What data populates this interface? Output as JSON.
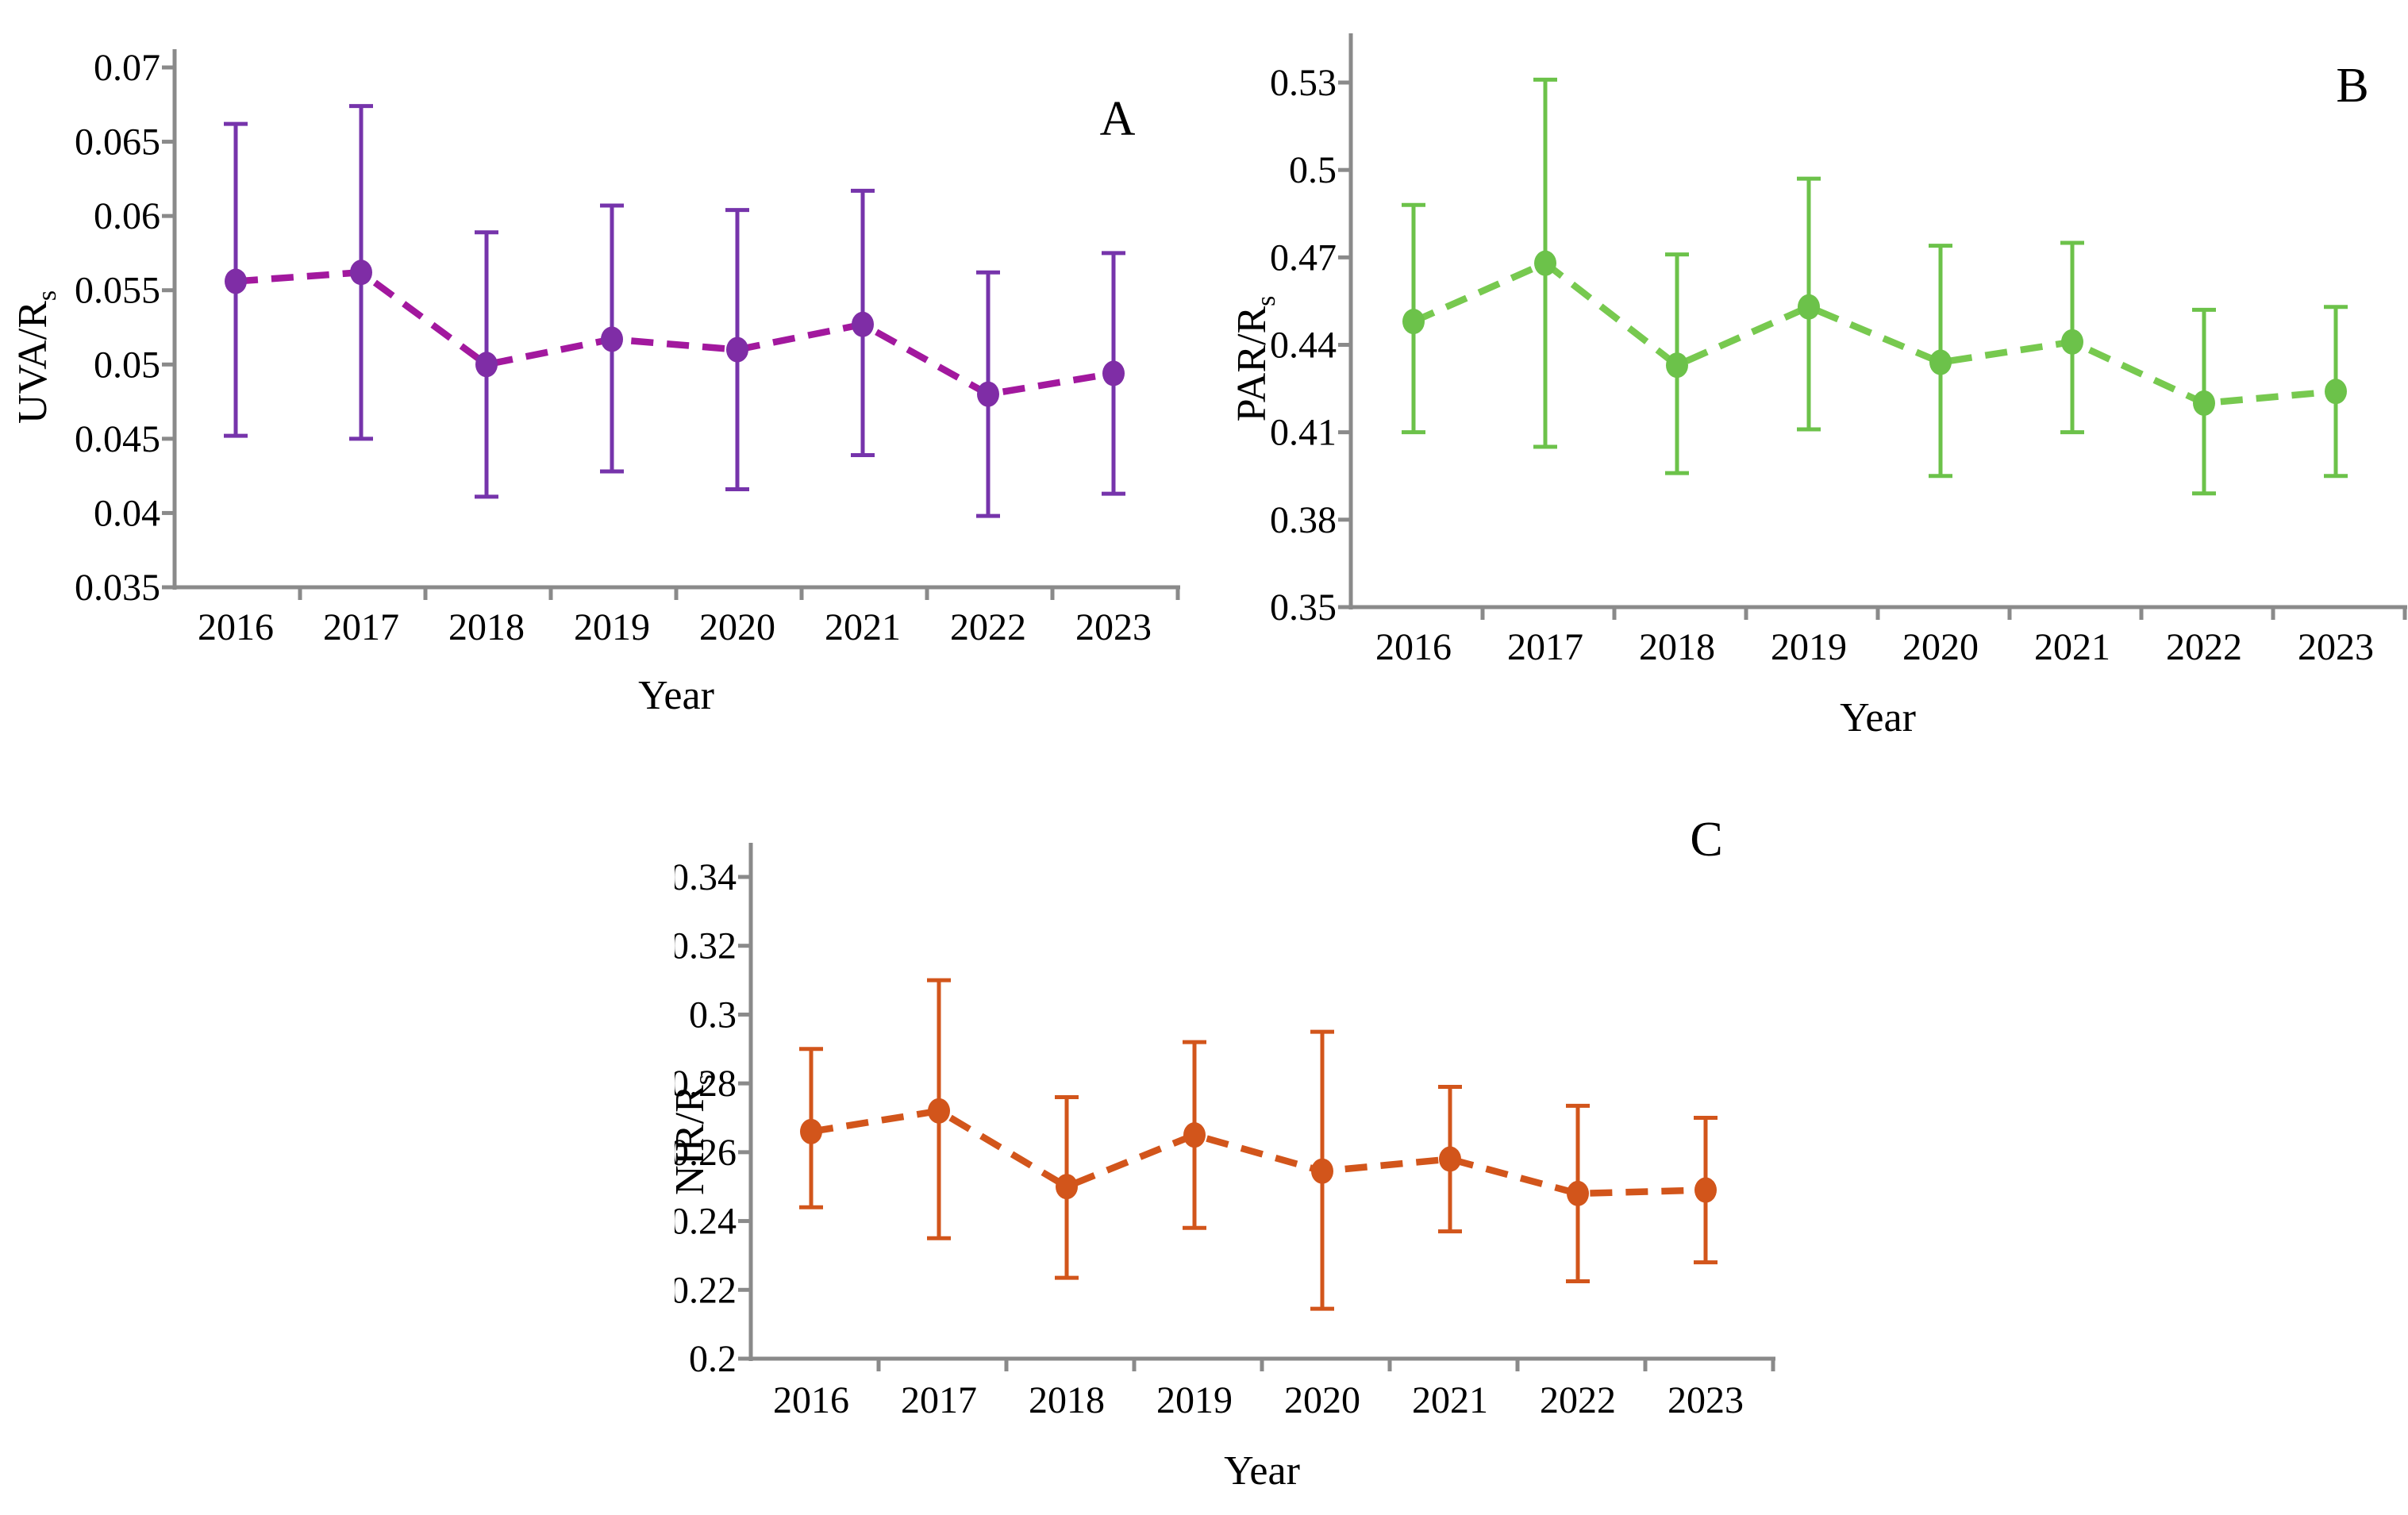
{
  "figure": {
    "background": "#ffffff",
    "axis_color": "#8a8a8a",
    "text_color": "#000000",
    "xlabel": "Year"
  },
  "chart_data": [
    {
      "id": "A",
      "type": "line",
      "panel_label": "A",
      "ylabel_base": "UVA/R",
      "ylabel_sub": "s",
      "xlabel": "Year",
      "categories": [
        "2016",
        "2017",
        "2018",
        "2019",
        "2020",
        "2021",
        "2022",
        "2023"
      ],
      "values": [
        0.0556,
        0.0562,
        0.05,
        0.0517,
        0.051,
        0.0527,
        0.048,
        0.0494
      ],
      "error_upper": [
        0.0662,
        0.0674,
        0.0589,
        0.0607,
        0.0604,
        0.0617,
        0.0562,
        0.0575
      ],
      "error_lower": [
        0.0452,
        0.045,
        0.0411,
        0.0428,
        0.0416,
        0.0439,
        0.0398,
        0.0413
      ],
      "ylim": [
        0.035,
        0.07
      ],
      "ytick_step": 0.005,
      "grid": false,
      "legend": "none",
      "colors": {
        "marker": "#7f2da6",
        "line": "#a2189e",
        "error": "#7634ab"
      }
    },
    {
      "id": "B",
      "type": "line",
      "panel_label": "B",
      "ylabel_base": "PAR/R",
      "ylabel_sub": "s",
      "xlabel": "Year",
      "categories": [
        "2016",
        "2017",
        "2018",
        "2019",
        "2020",
        "2021",
        "2022",
        "2023"
      ],
      "values": [
        0.448,
        0.468,
        0.433,
        0.453,
        0.434,
        0.441,
        0.42,
        0.424
      ],
      "error_upper": [
        0.488,
        0.531,
        0.471,
        0.497,
        0.474,
        0.475,
        0.452,
        0.453
      ],
      "error_lower": [
        0.41,
        0.405,
        0.396,
        0.411,
        0.395,
        0.41,
        0.389,
        0.395
      ],
      "ylim": [
        0.35,
        0.53
      ],
      "ytick_step": 0.03,
      "grid": false,
      "legend": "none",
      "colors": {
        "marker": "#6cc24a",
        "line": "#77c94f",
        "error": "#6cc24a"
      }
    },
    {
      "id": "C",
      "type": "line",
      "panel_label": "C",
      "ylabel_base": "NIR/R",
      "ylabel_sub": "s",
      "xlabel": "Year",
      "categories": [
        "2016",
        "2017",
        "2018",
        "2019",
        "2020",
        "2021",
        "2022",
        "2023"
      ],
      "values": [
        0.266,
        0.272,
        0.25,
        0.265,
        0.2545,
        0.258,
        0.248,
        0.249
      ],
      "error_upper": [
        0.29,
        0.31,
        0.276,
        0.292,
        0.295,
        0.279,
        0.2735,
        0.27
      ],
      "error_lower": [
        0.244,
        0.235,
        0.2235,
        0.238,
        0.2145,
        0.237,
        0.2225,
        0.228
      ],
      "ylim": [
        0.2,
        0.34
      ],
      "ytick_step": 0.02,
      "grid": false,
      "legend": "none",
      "colors": {
        "marker": "#d2551b",
        "line": "#d2551b",
        "error": "#d2551b"
      }
    }
  ]
}
